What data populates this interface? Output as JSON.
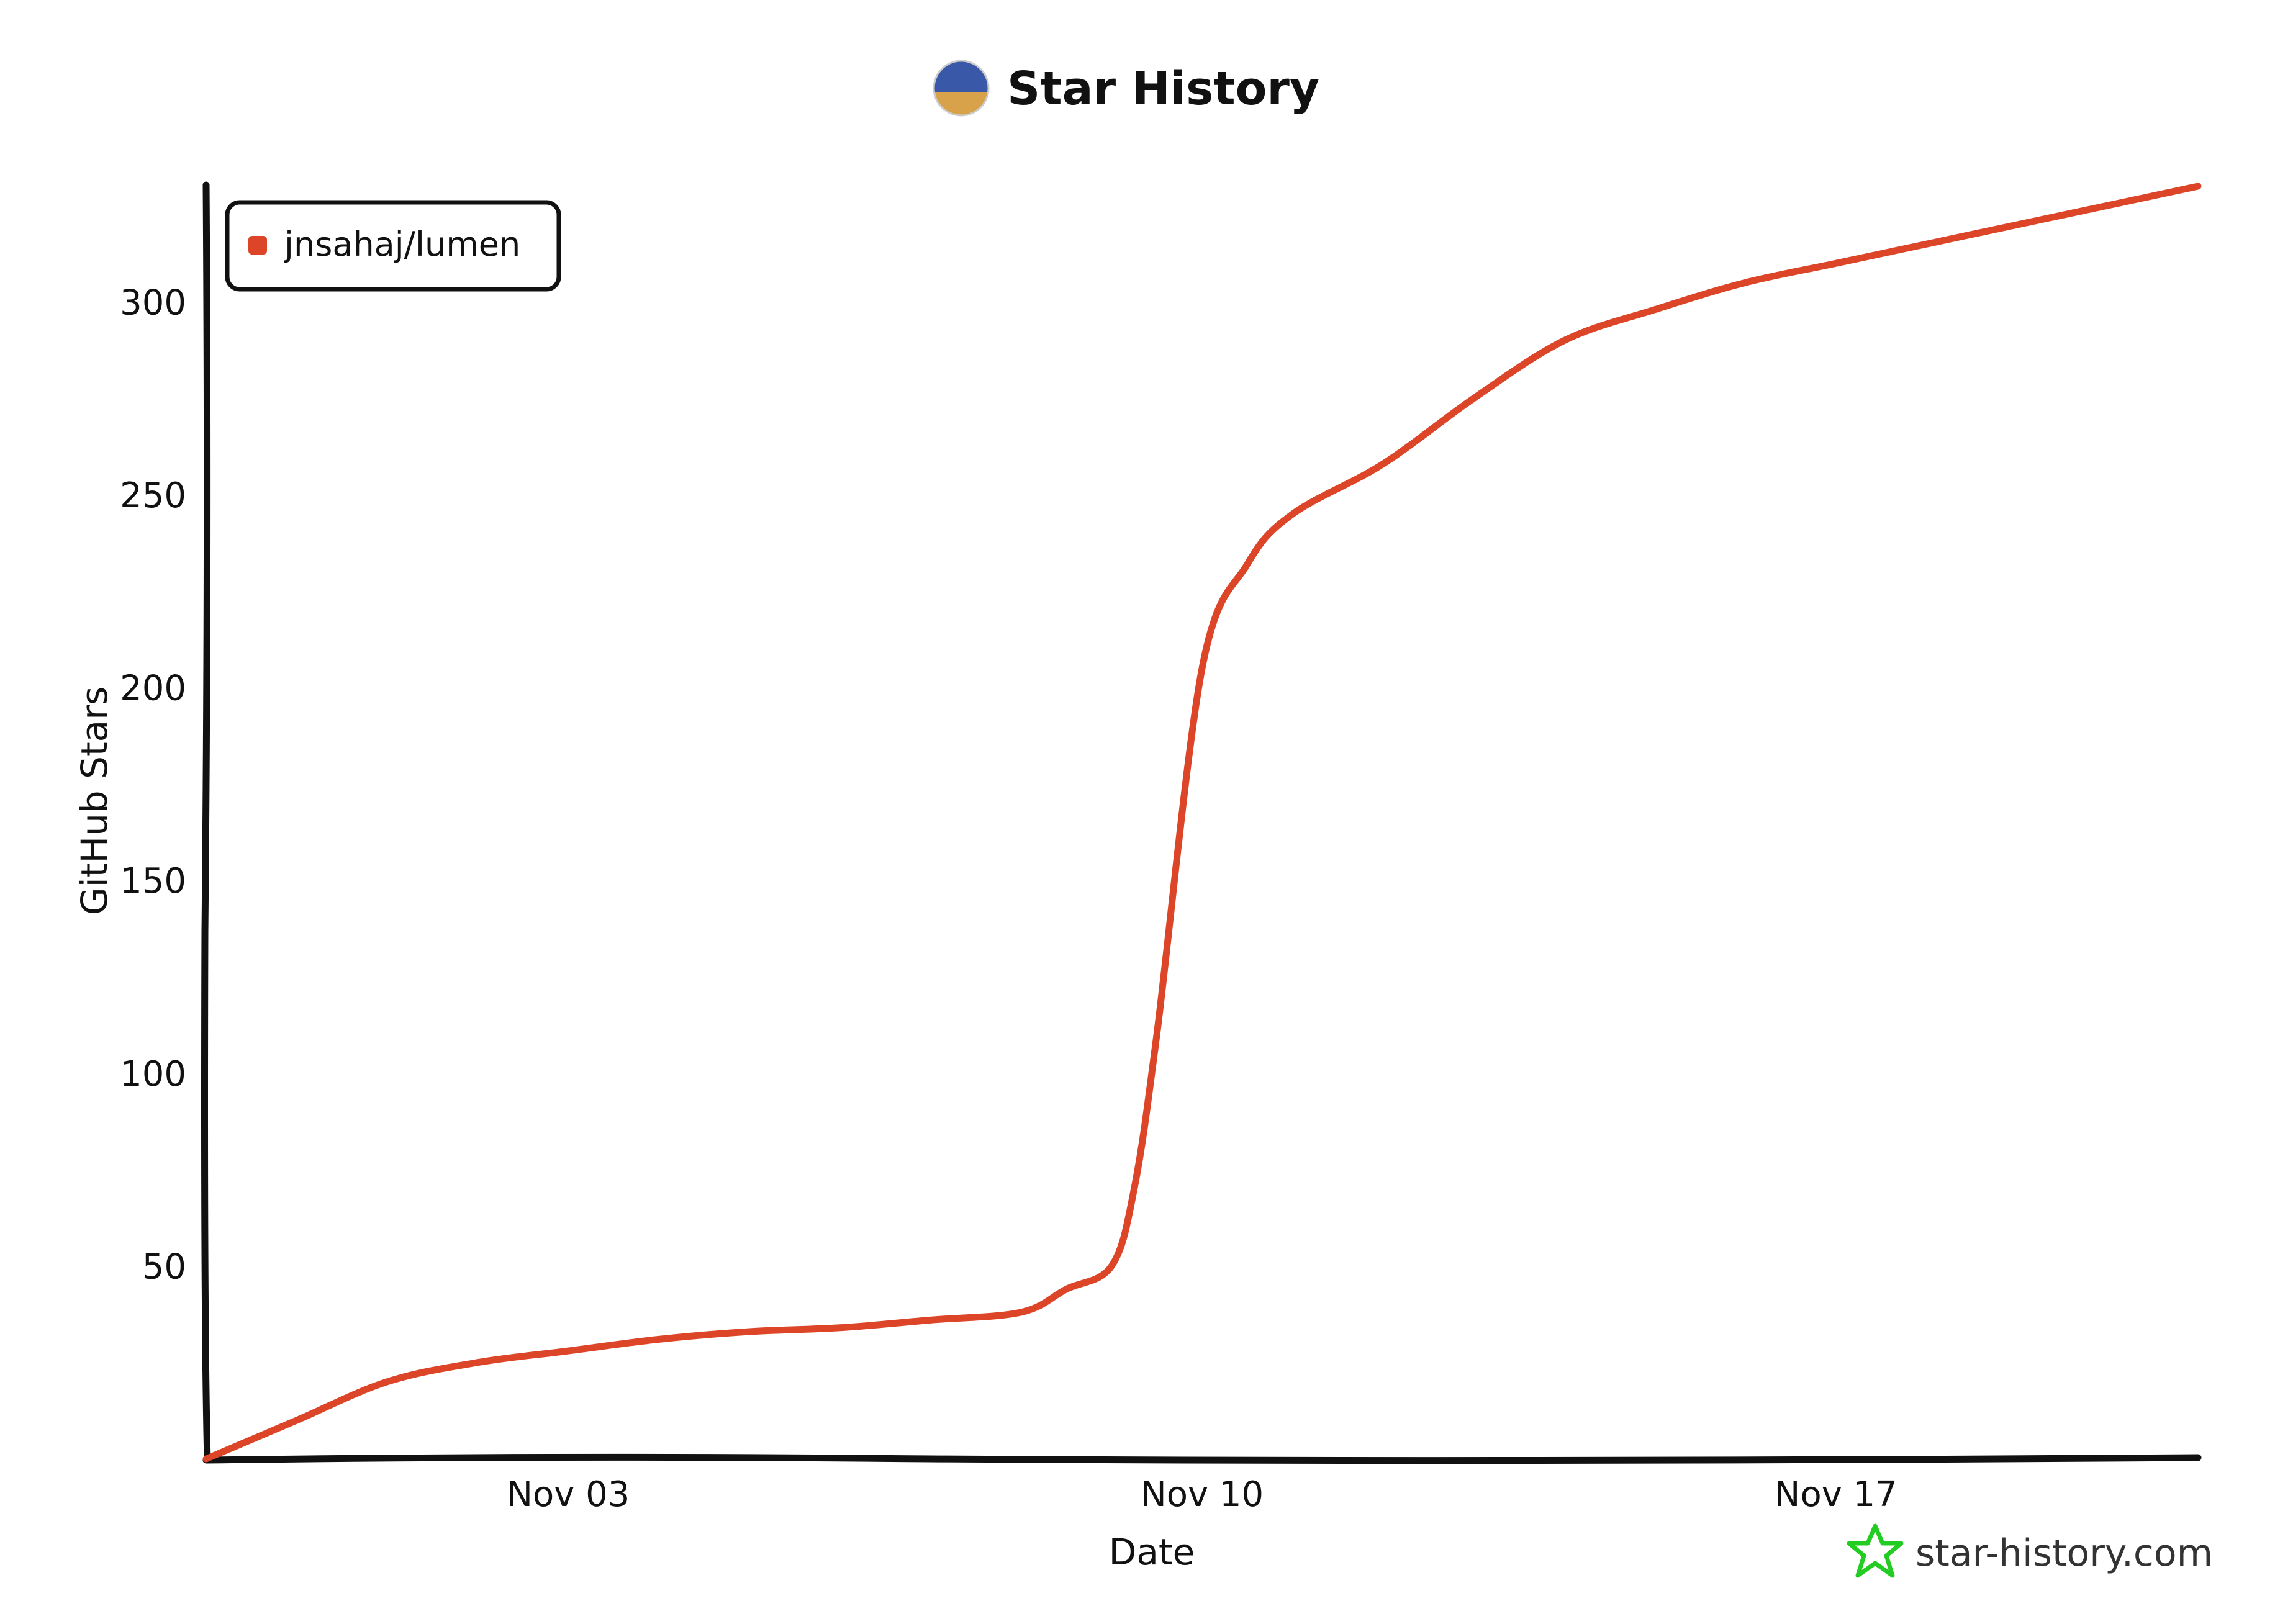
{
  "chart_data": {
    "type": "line",
    "title": "Star History",
    "xlabel": "Date",
    "ylabel": "GitHub Stars",
    "x": [
      "Oct 30",
      "Oct 31",
      "Nov 01",
      "Nov 02",
      "Nov 03",
      "Nov 04",
      "Nov 05",
      "Nov 06",
      "Nov 07",
      "Nov 08",
      "Nov 08 12h",
      "Nov 09",
      "Nov 09 06h",
      "Nov 09 12h",
      "Nov 10",
      "Nov 10 12h",
      "Nov 11",
      "Nov 12",
      "Nov 13",
      "Nov 14",
      "Nov 15",
      "Nov 16",
      "Nov 17",
      "Nov 18",
      "Nov 19",
      "Nov 20",
      "Nov 21"
    ],
    "x_days": [
      0,
      1,
      2,
      3,
      4,
      5,
      6,
      7,
      8,
      9,
      9.5,
      10,
      10.25,
      10.5,
      11,
      11.5,
      12,
      13,
      14,
      15,
      16,
      17,
      18,
      19,
      20,
      21,
      22
    ],
    "series": [
      {
        "name": "jnsahaj/lumen",
        "color": "#dd4528",
        "values": [
          0,
          10,
          20,
          25,
          28,
          31,
          33,
          34,
          36,
          38,
          44,
          50,
          70,
          110,
          205,
          232,
          245,
          258,
          275,
          290,
          298,
          305,
          310,
          315,
          320,
          325,
          330
        ]
      }
    ],
    "x_ticks": [
      {
        "label": "Nov 03",
        "day": 4
      },
      {
        "label": "Nov 10",
        "day": 11
      },
      {
        "label": "Nov 17",
        "day": 18
      }
    ],
    "y_ticks": [
      50,
      100,
      150,
      200,
      250,
      300
    ],
    "xlim_days": [
      0,
      22
    ],
    "ylim": [
      0,
      330
    ],
    "grid": false,
    "legend": "top-left",
    "watermark": "star-history.com",
    "watermark_color": "#22cc22",
    "axis_color": "#111111"
  }
}
